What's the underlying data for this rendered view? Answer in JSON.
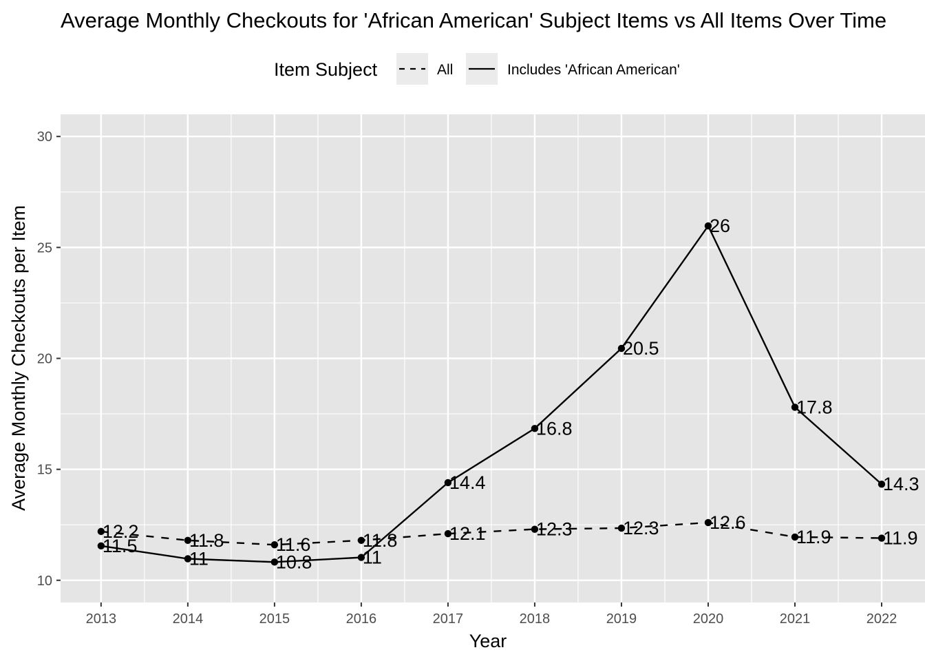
{
  "chart_data": {
    "type": "line",
    "title": "Average Monthly Checkouts for 'African American' Subject Items vs All Items Over Time",
    "xlabel": "Year",
    "ylabel": "Average Monthly Checkouts per Item",
    "x": [
      2013,
      2014,
      2015,
      2016,
      2017,
      2018,
      2019,
      2020,
      2021,
      2022
    ],
    "ylim": [
      9,
      31
    ],
    "yticks": [
      10,
      15,
      20,
      25,
      30
    ],
    "grid": true,
    "legend": {
      "title": "Item Subject",
      "position": "top"
    },
    "series": [
      {
        "name": "All",
        "linestyle": "dashed",
        "color": "#000000",
        "values": [
          12.2,
          11.8,
          11.6,
          11.8,
          12.1,
          12.3,
          12.35,
          12.6,
          11.95,
          11.9
        ],
        "labels": [
          "12.2",
          "11.8",
          "11.6",
          "11.8",
          "12.1",
          "12.3",
          "12.3",
          "12.6",
          "11.9",
          "11.9"
        ]
      },
      {
        "name": "Includes 'African American'",
        "linestyle": "solid",
        "color": "#000000",
        "values": [
          11.55,
          10.97,
          10.82,
          11.03,
          14.4,
          16.84,
          20.45,
          25.97,
          17.8,
          14.33
        ],
        "labels": [
          "11.5",
          "11",
          "10.8",
          "11",
          "14.4",
          "16.8",
          "20.5",
          "26",
          "17.8",
          "14.3"
        ]
      }
    ]
  },
  "style": {
    "panel_background": "#e5e5e5",
    "grid_color": "#ffffff",
    "tick_label_color": "#4d4d4d",
    "legend_key_background": "#ebebeb"
  }
}
